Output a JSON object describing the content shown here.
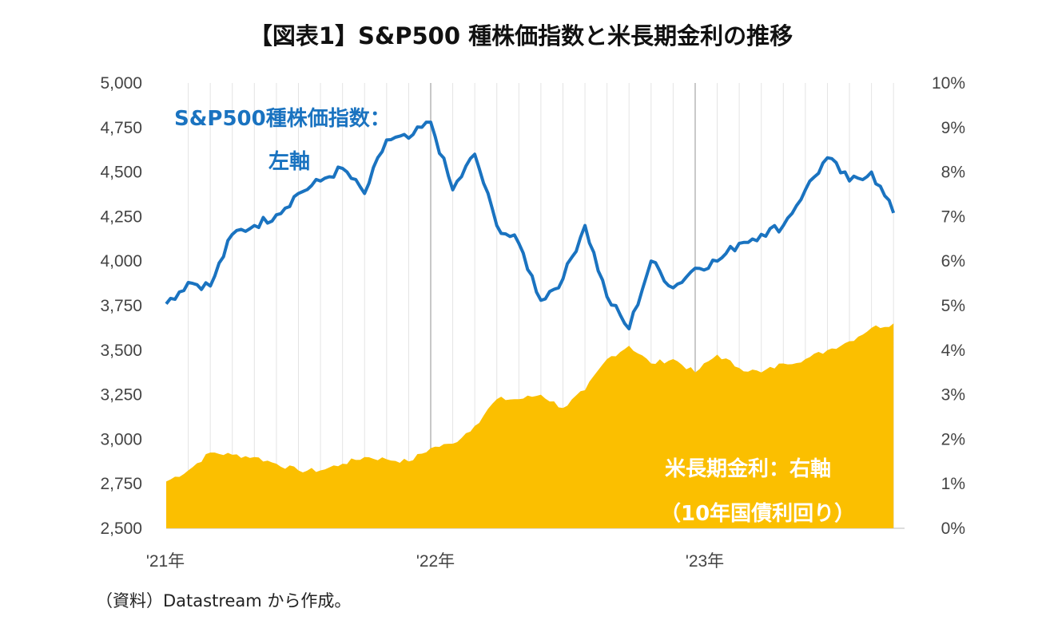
{
  "title": "【図表1】S&P500 種株価指数と米長期金利の推移",
  "source": "（資料）Datastream から作成。",
  "colors": {
    "sp500": "#1a73c0",
    "yield": "#fbbf00",
    "grid": "#e4e4e4",
    "year_grid": "#c8c8c8"
  },
  "chart_data": {
    "type": "line",
    "x_tick_labels": [
      "'21年",
      "'22年",
      "'23年"
    ],
    "y_left": {
      "ticks": [
        "5,000",
        "4,750",
        "4,500",
        "4,250",
        "4,000",
        "3,750",
        "3,500",
        "3,250",
        "3,000",
        "2,750",
        "2,500"
      ],
      "ylim": [
        2500,
        5000
      ]
    },
    "y_right": {
      "ticks": [
        "10%",
        "9%",
        "8%",
        "7%",
        "6%",
        "5%",
        "4%",
        "3%",
        "2%",
        "1%",
        "0%"
      ],
      "ylim": [
        0,
        10
      ]
    },
    "annotations": {
      "sp500_line1": "S&P500種株価指数：",
      "sp500_line2": "左軸",
      "yield_line1": "米長期金利：右軸",
      "yield_line2": "（10年国債利回り）"
    },
    "series": [
      {
        "name": "S&P500種株価指数",
        "axis": "left",
        "kind": "line",
        "x": [
          "2021-01",
          "2021-02",
          "2021-03",
          "2021-04",
          "2021-05",
          "2021-06",
          "2021-07",
          "2021-08",
          "2021-09",
          "2021-10",
          "2021-11",
          "2021-12",
          "2022-01",
          "2022-02",
          "2022-03",
          "2022-04",
          "2022-05",
          "2022-06",
          "2022-07",
          "2022-08",
          "2022-09",
          "2022-10",
          "2022-11",
          "2022-12",
          "2023-01",
          "2023-02",
          "2023-03",
          "2023-04",
          "2023-05",
          "2023-06",
          "2023-07",
          "2023-08",
          "2023-09",
          "2023-10"
        ],
        "values": [
          3760,
          3880,
          3860,
          4150,
          4200,
          4260,
          4380,
          4450,
          4520,
          4380,
          4680,
          4690,
          4780,
          4400,
          4600,
          4200,
          4100,
          3780,
          3900,
          4200,
          3800,
          3620,
          4000,
          3850,
          3960,
          4000,
          4100,
          4150,
          4200,
          4400,
          4580,
          4450,
          4500,
          4270
        ]
      },
      {
        "name": "米長期金利（10年国債利回り）",
        "axis": "right",
        "kind": "area",
        "x": [
          "2021-01",
          "2021-02",
          "2021-03",
          "2021-04",
          "2021-05",
          "2021-06",
          "2021-07",
          "2021-08",
          "2021-09",
          "2021-10",
          "2021-11",
          "2021-12",
          "2022-01",
          "2022-02",
          "2022-03",
          "2022-04",
          "2022-05",
          "2022-06",
          "2022-07",
          "2022-08",
          "2022-09",
          "2022-10",
          "2022-11",
          "2022-12",
          "2023-01",
          "2023-02",
          "2023-03",
          "2023-04",
          "2023-05",
          "2023-06",
          "2023-07",
          "2023-08",
          "2023-09",
          "2023-10"
        ],
        "values": [
          1.05,
          1.3,
          1.7,
          1.65,
          1.6,
          1.45,
          1.3,
          1.3,
          1.45,
          1.6,
          1.55,
          1.5,
          1.8,
          1.9,
          2.3,
          2.9,
          2.9,
          3.0,
          2.7,
          3.1,
          3.8,
          4.1,
          3.7,
          3.8,
          3.5,
          3.9,
          3.6,
          3.5,
          3.7,
          3.8,
          4.0,
          4.2,
          4.5,
          4.6
        ]
      }
    ]
  }
}
